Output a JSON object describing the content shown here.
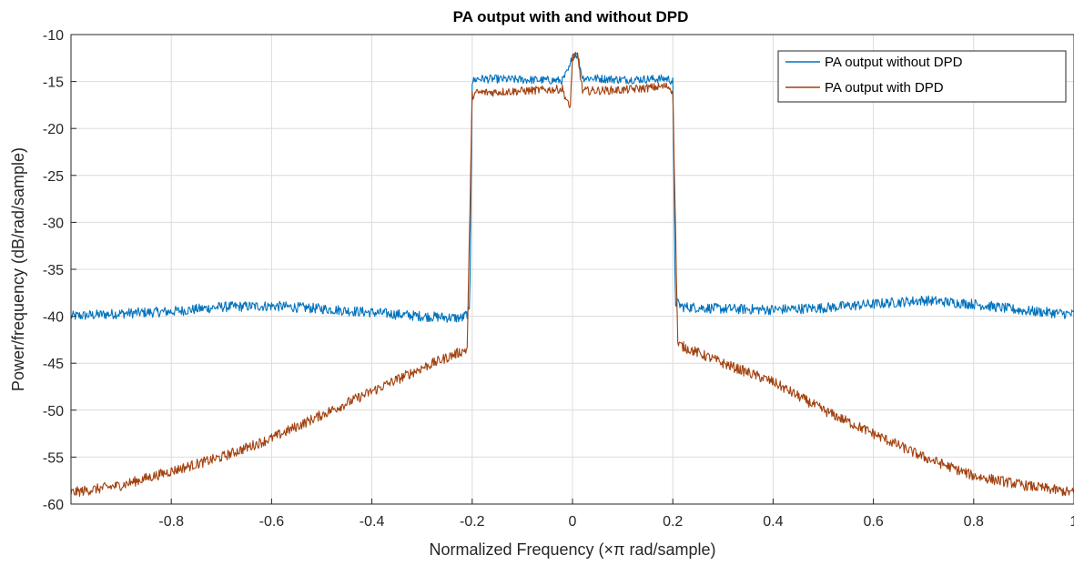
{
  "chart_data": {
    "type": "line",
    "title": "PA output with and without DPD",
    "xlabel": "Normalized Frequency  (×π rad/sample)",
    "ylabel": "Power/frequency (dB/rad/sample)",
    "xlim": [
      -1,
      1
    ],
    "ylim": [
      -60,
      -10
    ],
    "xticks": [
      -0.8,
      -0.6,
      -0.4,
      -0.2,
      0,
      0.2,
      0.4,
      0.6,
      0.8,
      1
    ],
    "xtick_labels": [
      "-0.8",
      "-0.6",
      "-0.4",
      "-0.2",
      "0",
      "0.2",
      "0.4",
      "0.6",
      "0.8",
      "1"
    ],
    "yticks": [
      -10,
      -15,
      -20,
      -25,
      -30,
      -35,
      -40,
      -45,
      -50,
      -55,
      -60
    ],
    "ytick_labels": [
      "-10",
      "-15",
      "-20",
      "-25",
      "-30",
      "-35",
      "-40",
      "-45",
      "-50",
      "-55",
      "-60"
    ],
    "grid": true,
    "legend_position": "top-right",
    "series": [
      {
        "name": "PA output without DPD",
        "color": "#0072BD",
        "x": [
          -1.0,
          -0.9,
          -0.8,
          -0.7,
          -0.6,
          -0.5,
          -0.4,
          -0.3,
          -0.22,
          -0.205,
          -0.2,
          -0.19,
          -0.1,
          -0.02,
          -0.005,
          0.0,
          0.01,
          0.02,
          0.1,
          0.19,
          0.2,
          0.205,
          0.22,
          0.3,
          0.4,
          0.5,
          0.6,
          0.7,
          0.8,
          0.9,
          1.0
        ],
        "y": [
          -40.0,
          -39.7,
          -39.5,
          -39.0,
          -38.9,
          -39.2,
          -39.6,
          -40.0,
          -40.2,
          -39.5,
          -15.0,
          -14.7,
          -14.8,
          -14.9,
          -13.5,
          -12.0,
          -12.2,
          -14.6,
          -14.8,
          -14.7,
          -15.0,
          -38.5,
          -39.0,
          -39.2,
          -39.3,
          -39.1,
          -38.7,
          -38.3,
          -38.7,
          -39.4,
          -39.8
        ]
      },
      {
        "name": "PA output with DPD",
        "color": "#A2410F",
        "x": [
          -1.0,
          -0.9,
          -0.8,
          -0.7,
          -0.6,
          -0.5,
          -0.4,
          -0.3,
          -0.21,
          -0.2,
          -0.19,
          -0.1,
          -0.02,
          -0.005,
          0.0,
          0.01,
          0.02,
          0.1,
          0.19,
          0.2,
          0.21,
          0.3,
          0.4,
          0.5,
          0.6,
          0.7,
          0.8,
          0.9,
          1.0
        ],
        "y": [
          -58.8,
          -58.0,
          -56.5,
          -55.0,
          -53.0,
          -50.5,
          -48.0,
          -45.5,
          -43.5,
          -16.5,
          -16.2,
          -16.0,
          -15.8,
          -18.0,
          -12.5,
          -12.2,
          -16.0,
          -15.9,
          -15.5,
          -16.0,
          -43.0,
          -45.0,
          -47.0,
          -50.0,
          -52.5,
          -55.0,
          -57.0,
          -58.0,
          -58.8
        ]
      }
    ]
  }
}
